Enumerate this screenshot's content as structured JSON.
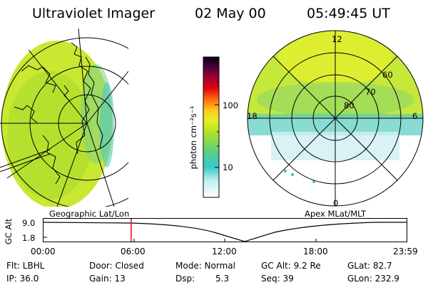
{
  "header": {
    "instrument": "Ultraviolet Imager",
    "date": "02 May 00",
    "time": "05:49:45 UT"
  },
  "colorbar": {
    "label": "photon cm⁻²s⁻¹",
    "ticks": [
      "100",
      "10"
    ]
  },
  "polar_plot": {
    "mlt_labels": [
      "12",
      "18",
      "6",
      "0"
    ],
    "mlat_labels": [
      "60",
      "70",
      "80"
    ]
  },
  "panel_labels": {
    "left": "Geographic Lat/Lon",
    "right": "Apex MLat/MLT"
  },
  "altitude_plot": {
    "ylabel": "GC Alt",
    "ymax": "9.0",
    "ymin": "1.8",
    "time_ticks": [
      "00:00",
      "06:00",
      "12:00",
      "18:00",
      "23:59"
    ],
    "marker_time_hours": 5.83
  },
  "info": {
    "filter": "Flt: LBHL",
    "door": "Door: Closed",
    "mode": "Mode: Normal",
    "gc_alt": "GC Alt: 9.2 Re",
    "glat": "GLat:  82.7",
    "ip": "IP: 36.0",
    "gain": "Gain: 13",
    "dsp_label": "Dsp:",
    "dsp_value": "5.3",
    "seq": "Seq: 39",
    "glon": "GLon: 232.9"
  },
  "colors": {
    "accent_marker": "#ff0000"
  }
}
